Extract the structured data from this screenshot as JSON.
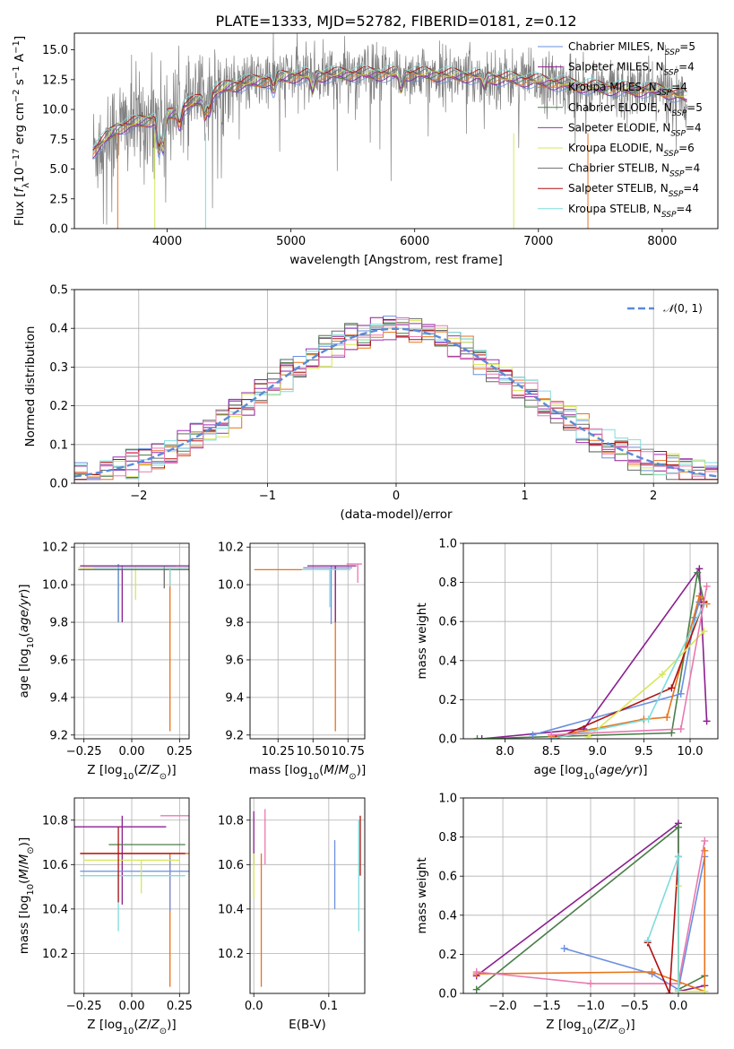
{
  "figure": {
    "title": "PLATE=1333, MJD=52782, FIBERID=0181, z=0.12"
  },
  "models": [
    {
      "name": "Chabrier MILES",
      "nssp": "5",
      "color": "#6a8fe0"
    },
    {
      "name": "Salpeter MILES",
      "nssp": "4",
      "color": "#8b1f8f"
    },
    {
      "name": "Kroupa MILES",
      "nssp": "4",
      "color": "#e8731a"
    },
    {
      "name": "Chabrier ELODIE",
      "nssp": "5",
      "color": "#4a7f4a"
    },
    {
      "name": "Salpeter ELODIE",
      "nssp": "4",
      "color": "#9b30b0"
    },
    {
      "name": "Kroupa ELODIE",
      "nssp": "6",
      "color": "#d6e856"
    },
    {
      "name": "Chabrier STELIB",
      "nssp": "4",
      "color": "#6b6b6b"
    },
    {
      "name": "Salpeter STELIB",
      "nssp": "4",
      "color": "#b01010"
    },
    {
      "name": "Kroupa STELIB",
      "nssp": "4",
      "color": "#7fdcdc"
    }
  ],
  "chart_data": [
    {
      "id": "spectrum",
      "type": "line",
      "xlabel": "wavelength [Angstrom, rest frame]",
      "ylabel": "Flux [f_λ 10^-17 erg cm^-2 s^-1 A^-1]",
      "xlim": [
        3250,
        8450
      ],
      "ylim": [
        0,
        16.4
      ],
      "xticks": [
        4000,
        5000,
        6000,
        7000,
        8000
      ],
      "yticks": [
        0.0,
        2.5,
        5.0,
        7.5,
        10.0,
        12.5,
        15.0
      ],
      "grid": false,
      "legend": "upper right",
      "data": {
        "x": [
          3400,
          8200
        ],
        "continuum": [
          [
            3400,
            6.5
          ],
          [
            3600,
            8.5
          ],
          [
            4000,
            9.5
          ],
          [
            4500,
            12.0
          ],
          [
            5000,
            12.8
          ],
          [
            5500,
            13.0
          ],
          [
            6000,
            13.0
          ],
          [
            6500,
            12.8
          ],
          [
            7000,
            12.4
          ],
          [
            7500,
            11.8
          ],
          [
            8000,
            11.6
          ],
          [
            8200,
            11.0
          ]
        ]
      }
    },
    {
      "id": "residuals",
      "type": "histogram",
      "xlabel": "(data-model)/error",
      "ylabel": "Normed distribution",
      "xlim": [
        -2.5,
        2.5
      ],
      "ylim": [
        0,
        0.5
      ],
      "xticks": [
        -2,
        -1,
        0,
        1,
        2
      ],
      "yticks": [
        0.0,
        0.1,
        0.2,
        0.3,
        0.4,
        0.5
      ],
      "grid": true,
      "legend": "upper right",
      "reference": {
        "label": "N(0,1)",
        "mean": 0,
        "sigma": 1,
        "color": "#5b8ad8"
      },
      "bin_width": 0.1
    },
    {
      "id": "age_vs_Z",
      "type": "errorbar",
      "xlabel": "Z [log10(Z/Z⊙)]",
      "ylabel": "age [log10(age/yr)]",
      "xlim": [
        -0.3,
        0.3
      ],
      "ylim": [
        9.18,
        10.22
      ],
      "xticks": [
        -0.25,
        0.0,
        0.25
      ],
      "yticks": [
        9.2,
        9.4,
        9.6,
        9.8,
        10.0,
        10.2
      ],
      "grid": true,
      "points": [
        {
          "x": 0.2,
          "y": 10.09,
          "xerr": [
            0.45,
            0.1
          ],
          "yerr": [
            0.87,
            0.0
          ],
          "color": "#e8731a"
        },
        {
          "x": -0.07,
          "y": 10.08,
          "xerr": [
            0.2,
            0.37
          ],
          "yerr": [
            0.28,
            0.02
          ],
          "color": "#4a7f4a"
        },
        {
          "x": 0.02,
          "y": 10.09,
          "xerr": [
            0.3,
            0.25
          ],
          "yerr": [
            0.17,
            0.01
          ],
          "color": "#d6e856"
        },
        {
          "x": -0.07,
          "y": 10.1,
          "xerr": [
            0.2,
            0.3
          ],
          "yerr": [
            0.3,
            0.01
          ],
          "color": "#6a8fe0"
        },
        {
          "x": -0.05,
          "y": 10.1,
          "xerr": [
            0.22,
            0.35
          ],
          "yerr": [
            0.3,
            0.0
          ],
          "color": "#8b1f8f"
        },
        {
          "x": 0.17,
          "y": 10.08,
          "xerr": [
            0.45,
            0.13
          ],
          "yerr": [
            0.1,
            0.02
          ],
          "color": "#6b6b6b"
        },
        {
          "x": 0.2,
          "y": 10.09,
          "xerr": [
            0.4,
            0.1
          ],
          "yerr": [
            0.1,
            0.0
          ],
          "color": "#7fdcdc"
        }
      ]
    },
    {
      "id": "age_vs_mass",
      "type": "errorbar",
      "xlabel": "mass [log10(M/M⊙)]",
      "ylabel": "",
      "xlim": [
        10.05,
        10.87
      ],
      "ylim": [
        9.18,
        10.22
      ],
      "xticks": [
        10.25,
        10.5,
        10.75
      ],
      "yticks": [
        9.2,
        9.4,
        9.6,
        9.8,
        10.0,
        10.2
      ],
      "grid": true,
      "points": [
        {
          "x": 10.66,
          "y": 10.08,
          "xerr": [
            0.58,
            0.1
          ],
          "yerr": [
            0.86,
            0.0
          ],
          "color": "#e8731a"
        },
        {
          "x": 10.63,
          "y": 10.09,
          "xerr": [
            0.2,
            0.15
          ],
          "yerr": [
            0.3,
            0.01
          ],
          "color": "#6a8fe0"
        },
        {
          "x": 10.66,
          "y": 10.1,
          "xerr": [
            0.2,
            0.15
          ],
          "yerr": [
            0.3,
            0.0
          ],
          "color": "#8b1f8f"
        },
        {
          "x": 10.82,
          "y": 10.11,
          "xerr": [
            0.08,
            0.03
          ],
          "yerr": [
            0.1,
            0.0
          ],
          "color": "#e87ab0"
        },
        {
          "x": 10.62,
          "y": 10.08,
          "xerr": [
            0.2,
            0.15
          ],
          "yerr": [
            0.2,
            0.01
          ],
          "color": "#7fdcdc"
        }
      ]
    },
    {
      "id": "mass_weight_vs_age",
      "type": "line",
      "xlabel": "age [log10(age/yr)]",
      "ylabel": "mass weight",
      "xlim": [
        7.55,
        10.3
      ],
      "ylim": [
        0,
        1.0
      ],
      "xticks": [
        8.0,
        8.5,
        9.0,
        9.5,
        10.0
      ],
      "yticks": [
        0.0,
        0.2,
        0.4,
        0.6,
        0.8,
        1.0
      ],
      "grid": true,
      "series": [
        {
          "color": "#8b1f8f",
          "x": [
            7.75,
            8.85,
            10.1,
            10.18
          ],
          "y": [
            0.0,
            0.05,
            0.87,
            0.09
          ]
        },
        {
          "color": "#4a7f4a",
          "x": [
            7.7,
            9.8,
            10.08,
            10.15
          ],
          "y": [
            0.0,
            0.03,
            0.85,
            0.7
          ]
        },
        {
          "color": "#6a8fe0",
          "x": [
            8.3,
            9.9,
            10.05,
            10.1
          ],
          "y": [
            0.02,
            0.23,
            0.62,
            0.7
          ]
        },
        {
          "color": "#e8731a",
          "x": [
            8.5,
            9.5,
            9.75,
            10.1,
            10.18
          ],
          "y": [
            0.01,
            0.1,
            0.11,
            0.73,
            0.69
          ]
        },
        {
          "color": "#b01010",
          "x": [
            8.55,
            9.8,
            10.15
          ],
          "y": [
            0.0,
            0.26,
            0.7
          ]
        },
        {
          "color": "#d6e856",
          "x": [
            8.9,
            9.7,
            10.15
          ],
          "y": [
            0.01,
            0.33,
            0.55
          ]
        },
        {
          "color": "#7fdcdc",
          "x": [
            8.5,
            9.55,
            10.15
          ],
          "y": [
            0.0,
            0.1,
            0.69
          ]
        },
        {
          "color": "#e87ab0",
          "x": [
            8.5,
            9.9,
            10.18
          ],
          "y": [
            0.02,
            0.05,
            0.78
          ]
        }
      ]
    },
    {
      "id": "mass_vs_Z",
      "type": "errorbar",
      "xlabel": "Z [log10(Z/Z⊙)]",
      "ylabel": "mass [log10(M/M⊙)]",
      "xlim": [
        -0.3,
        0.3
      ],
      "ylim": [
        10.02,
        10.9
      ],
      "xticks": [
        -0.25,
        0.0,
        0.25
      ],
      "yticks": [
        10.2,
        10.4,
        10.6,
        10.8
      ],
      "grid": true,
      "points": [
        {
          "x": 0.2,
          "y": 10.65,
          "xerr": [
            0.47,
            0.1
          ],
          "yerr": [
            0.6,
            0.0
          ],
          "color": "#e8731a"
        },
        {
          "x": -0.05,
          "y": 10.77,
          "xerr": [
            0.25,
            0.23
          ],
          "yerr": [
            0.35,
            0.05
          ],
          "color": "#8b1f8f"
        },
        {
          "x": 0.0,
          "y": 10.69,
          "xerr": [
            0.12,
            0.28
          ],
          "yerr": [
            0.0,
            0.0
          ],
          "color": "#4a7f4a"
        },
        {
          "x": 0.2,
          "y": 10.57,
          "xerr": [
            0.47,
            0.1
          ],
          "yerr": [
            0.18,
            0.06
          ],
          "color": "#6a8fe0"
        },
        {
          "x": 0.05,
          "y": 10.62,
          "xerr": [
            0.3,
            0.2
          ],
          "yerr": [
            0.15,
            0.0
          ],
          "color": "#d6e856"
        },
        {
          "x": 0.25,
          "y": 10.82,
          "xerr": [
            0.1,
            0.05
          ],
          "yerr": [
            0.0,
            0.0
          ],
          "color": "#e87ab0"
        },
        {
          "x": -0.07,
          "y": 10.55,
          "xerr": [
            0.2,
            0.35
          ],
          "yerr": [
            0.25,
            0.02
          ],
          "color": "#7fdcdc"
        },
        {
          "x": -0.07,
          "y": 10.65,
          "xerr": [
            0.2,
            0.35
          ],
          "yerr": [
            0.22,
            0.12
          ],
          "color": "#b01010"
        }
      ]
    },
    {
      "id": "mass_vs_EBV",
      "type": "errorbar",
      "xlabel": "E(B-V)",
      "ylabel": "",
      "xlim": [
        -0.005,
        0.148
      ],
      "ylim": [
        10.02,
        10.9
      ],
      "xticks": [
        0.0,
        0.1
      ],
      "yticks": [
        10.2,
        10.4,
        10.6,
        10.8
      ],
      "grid": true,
      "points": [
        {
          "x": 0.01,
          "y": 10.65,
          "yerr": [
            0.6,
            0.0
          ],
          "color": "#e8731a"
        },
        {
          "x": 0.0,
          "y": 10.8,
          "yerr": [
            0.2,
            0.04
          ],
          "color": "#8b1f8f"
        },
        {
          "x": 0.015,
          "y": 10.75,
          "yerr": [
            0.15,
            0.1
          ],
          "color": "#e87ab0"
        },
        {
          "x": 0.0,
          "y": 10.55,
          "yerr": [
            0.1,
            0.1
          ],
          "color": "#d6e856"
        },
        {
          "x": 0.108,
          "y": 10.55,
          "yerr": [
            0.15,
            0.16
          ],
          "color": "#6a8fe0"
        },
        {
          "x": 0.14,
          "y": 10.55,
          "yerr": [
            0.25,
            0.25
          ],
          "color": "#7fdcdc"
        },
        {
          "x": 0.142,
          "y": 10.7,
          "yerr": [
            0.15,
            0.12
          ],
          "color": "#b01010"
        }
      ]
    },
    {
      "id": "mass_weight_vs_Z",
      "type": "line",
      "xlabel": "Z [log10(Z/Z⊙)]",
      "ylabel": "mass weight",
      "xlim": [
        -2.45,
        0.45
      ],
      "ylim": [
        0,
        1.0
      ],
      "xticks": [
        -2.0,
        -1.5,
        -1.0,
        -0.5,
        0.0
      ],
      "yticks": [
        0.0,
        0.2,
        0.4,
        0.6,
        0.8,
        1.0
      ],
      "grid": true,
      "series": [
        {
          "color": "#8b1f8f",
          "x": [
            -2.3,
            0.0,
            0.0,
            0.3
          ],
          "y": [
            0.09,
            0.87,
            0.01,
            0.04
          ]
        },
        {
          "color": "#4a7f4a",
          "x": [
            -2.3,
            0.0,
            0.0,
            0.3
          ],
          "y": [
            0.02,
            0.85,
            0.02,
            0.09
          ]
        },
        {
          "color": "#6a8fe0",
          "x": [
            -1.3,
            -0.3,
            0.0,
            0.3
          ],
          "y": [
            0.23,
            0.1,
            0.02,
            0.7
          ]
        },
        {
          "color": "#e8731a",
          "x": [
            -2.3,
            -0.3,
            0.3,
            0.3
          ],
          "y": [
            0.1,
            0.11,
            0.01,
            0.73
          ]
        },
        {
          "color": "#e87ab0",
          "x": [
            -2.3,
            -1.0,
            0.0,
            0.3
          ],
          "y": [
            0.11,
            0.05,
            0.05,
            0.78
          ]
        },
        {
          "color": "#b01010",
          "x": [
            -0.35,
            -0.1,
            0.0
          ],
          "y": [
            0.26,
            0.0,
            0.7
          ]
        },
        {
          "color": "#d6e856",
          "x": [
            0.0,
            0.0,
            0.3
          ],
          "y": [
            0.55,
            0.01,
            0.01
          ]
        },
        {
          "color": "#7fdcdc",
          "x": [
            -0.35,
            0.0,
            0.0
          ],
          "y": [
            0.27,
            0.7,
            0.02
          ]
        }
      ]
    }
  ]
}
